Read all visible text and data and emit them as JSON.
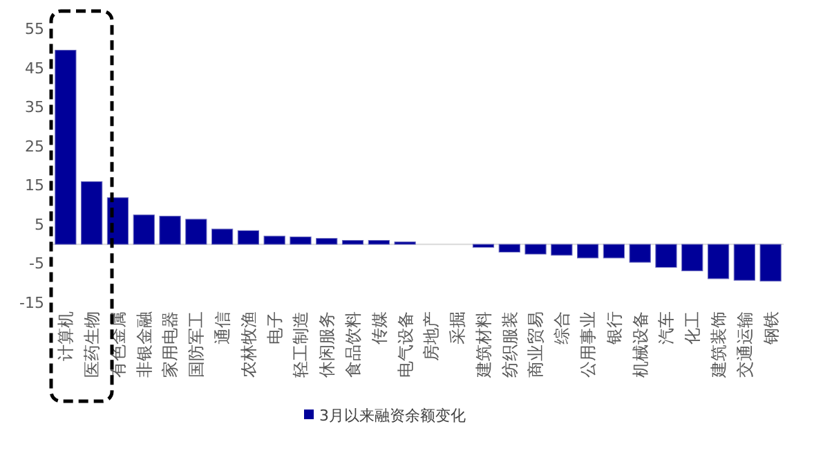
{
  "chart_data": {
    "type": "bar",
    "categories": [
      "计算机",
      "医药生物",
      "有色金属",
      "非银金融",
      "家用电器",
      "国防军工",
      "通信",
      "农林牧渔",
      "电子",
      "轻工制造",
      "休闲服务",
      "食品饮料",
      "传媒",
      "电气设备",
      "房地产",
      "采掘",
      "建筑材料",
      "纺织服装",
      "商业贸易",
      "综合",
      "公用事业",
      "银行",
      "机械设备",
      "汽车",
      "化工",
      "建筑装饰",
      "交通运输",
      "钢铁"
    ],
    "series": [
      {
        "name": "3月以来融资余额变化",
        "color": "#000099",
        "values": [
          49.6,
          16,
          11.9,
          7.5,
          7.2,
          6.4,
          3.9,
          3.5,
          2.1,
          1.9,
          1.5,
          1,
          1,
          0.6,
          0,
          null,
          -0.8,
          -2,
          -2.5,
          -2.8,
          -3.5,
          -3.5,
          -4.6,
          -5.9,
          -6.8,
          -8.8,
          -9.2,
          -9.4
        ]
      }
    ],
    "ylim": [
      -15,
      55
    ],
    "yticks": [
      -15,
      -5,
      5,
      15,
      25,
      35,
      45,
      55
    ],
    "grid": false,
    "legend": "bottom"
  }
}
